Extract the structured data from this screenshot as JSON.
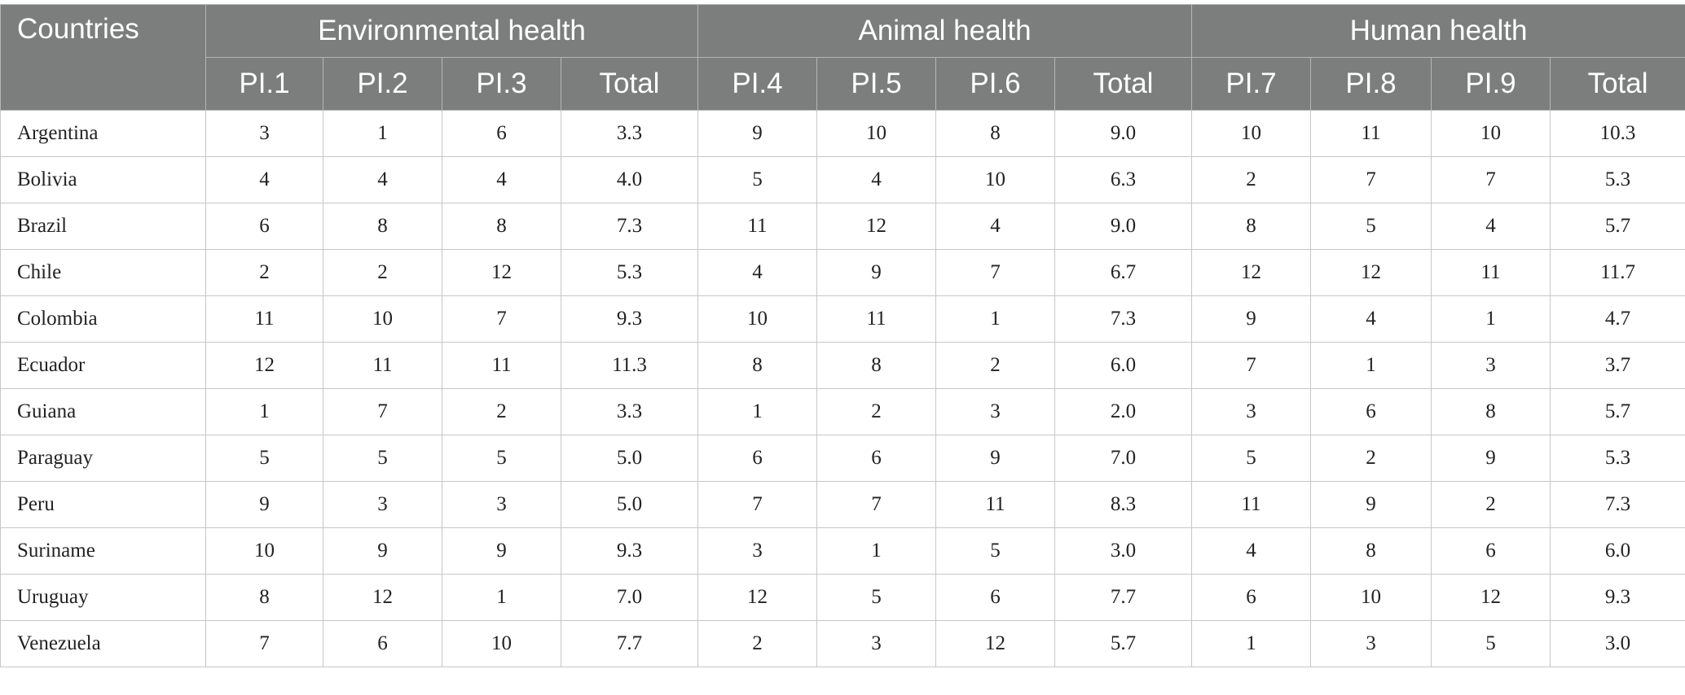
{
  "table": {
    "country_header": "Countries",
    "groups": [
      "Environmental health",
      "Animal health",
      "Human health"
    ],
    "subheaders": [
      "PI.1",
      "PI.2",
      "PI.3",
      "Total",
      "PI.4",
      "PI.5",
      "PI.6",
      "Total",
      "PI.7",
      "PI.8",
      "PI.9",
      "Total"
    ],
    "rows": [
      {
        "country": "Argentina",
        "values": [
          "3",
          "1",
          "6",
          "3.3",
          "9",
          "10",
          "8",
          "9.0",
          "10",
          "11",
          "10",
          "10.3"
        ]
      },
      {
        "country": "Bolivia",
        "values": [
          "4",
          "4",
          "4",
          "4.0",
          "5",
          "4",
          "10",
          "6.3",
          "2",
          "7",
          "7",
          "5.3"
        ]
      },
      {
        "country": "Brazil",
        "values": [
          "6",
          "8",
          "8",
          "7.3",
          "11",
          "12",
          "4",
          "9.0",
          "8",
          "5",
          "4",
          "5.7"
        ]
      },
      {
        "country": "Chile",
        "values": [
          "2",
          "2",
          "12",
          "5.3",
          "4",
          "9",
          "7",
          "6.7",
          "12",
          "12",
          "11",
          "11.7"
        ]
      },
      {
        "country": "Colombia",
        "values": [
          "11",
          "10",
          "7",
          "9.3",
          "10",
          "11",
          "1",
          "7.3",
          "9",
          "4",
          "1",
          "4.7"
        ]
      },
      {
        "country": "Ecuador",
        "values": [
          "12",
          "11",
          "11",
          "11.3",
          "8",
          "8",
          "2",
          "6.0",
          "7",
          "1",
          "3",
          "3.7"
        ]
      },
      {
        "country": "Guiana",
        "values": [
          "1",
          "7",
          "2",
          "3.3",
          "1",
          "2",
          "3",
          "2.0",
          "3",
          "6",
          "8",
          "5.7"
        ]
      },
      {
        "country": "Paraguay",
        "values": [
          "5",
          "5",
          "5",
          "5.0",
          "6",
          "6",
          "9",
          "7.0",
          "5",
          "2",
          "9",
          "5.3"
        ]
      },
      {
        "country": "Peru",
        "values": [
          "9",
          "3",
          "3",
          "5.0",
          "7",
          "7",
          "11",
          "8.3",
          "11",
          "9",
          "2",
          "7.3"
        ]
      },
      {
        "country": "Suriname",
        "values": [
          "10",
          "9",
          "9",
          "9.3",
          "3",
          "1",
          "5",
          "3.0",
          "4",
          "8",
          "6",
          "6.0"
        ]
      },
      {
        "country": "Uruguay",
        "values": [
          "8",
          "12",
          "1",
          "7.0",
          "12",
          "5",
          "6",
          "7.7",
          "6",
          "10",
          "12",
          "9.3"
        ]
      },
      {
        "country": "Venezuela",
        "values": [
          "7",
          "6",
          "10",
          "7.7",
          "2",
          "3",
          "12",
          "5.7",
          "1",
          "3",
          "5",
          "3.0"
        ]
      }
    ]
  }
}
